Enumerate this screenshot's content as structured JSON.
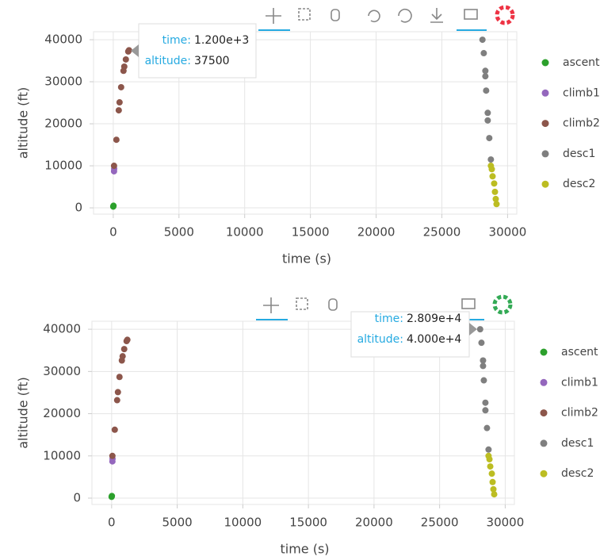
{
  "chart_data": [
    {
      "type": "scatter",
      "x_label": "time (s)",
      "y_label": "altitude (ft)",
      "xlim": [
        -1500,
        30700
      ],
      "ylim": [
        -1500,
        41900
      ],
      "xticks": [
        0,
        5000,
        10000,
        15000,
        20000,
        25000,
        30000
      ],
      "yticks": [
        0,
        10000,
        20000,
        30000,
        40000
      ],
      "grid": true,
      "legend": "right",
      "series": [
        {
          "name": "ascent",
          "color": "#2ca02c",
          "x": [
            0,
            20
          ],
          "values": [
            300,
            500
          ]
        },
        {
          "name": "climb1",
          "color": "#9467bd",
          "x": [
            60,
            70
          ],
          "values": [
            8700,
            9300
          ]
        },
        {
          "name": "climb2",
          "color": "#8c564b",
          "x": [
            60,
            240,
            420,
            480,
            600,
            780,
            840,
            960,
            1140,
            1200
          ],
          "values": [
            10000,
            16200,
            23200,
            25100,
            28700,
            32600,
            33600,
            35300,
            37200,
            37500
          ]
        },
        {
          "name": "desc1",
          "color": "#7f7f7f",
          "x": [
            28090,
            28190,
            28310,
            28310,
            28370,
            28490,
            28490,
            28610,
            28730
          ],
          "values": [
            40000,
            36800,
            32600,
            31300,
            27900,
            22600,
            20800,
            16600,
            11500
          ]
        },
        {
          "name": "desc2",
          "color": "#bcbd22",
          "x": [
            28730,
            28800,
            28860,
            28980,
            29040,
            29100,
            29160
          ],
          "values": [
            10000,
            9200,
            7500,
            5800,
            3800,
            2100,
            900
          ]
        }
      ],
      "tooltip": {
        "x_label": "time:",
        "x_value": "1.200e+3",
        "y_label": "altitude:",
        "y_value": "37500"
      }
    },
    {
      "type": "scatter",
      "x_label": "time (s)",
      "y_label": "altitude (ft)",
      "xlim": [
        -1500,
        30700
      ],
      "ylim": [
        -1500,
        41900
      ],
      "xticks": [
        0,
        5000,
        10000,
        15000,
        20000,
        25000,
        30000
      ],
      "yticks": [
        0,
        10000,
        20000,
        30000,
        40000
      ],
      "grid": true,
      "legend": "right",
      "series": [
        {
          "name": "ascent",
          "color": "#2ca02c",
          "x": [
            0,
            20
          ],
          "values": [
            300,
            500
          ]
        },
        {
          "name": "climb1",
          "color": "#9467bd",
          "x": [
            60,
            70
          ],
          "values": [
            8700,
            9300
          ]
        },
        {
          "name": "climb2",
          "color": "#8c564b",
          "x": [
            60,
            240,
            420,
            480,
            600,
            780,
            840,
            960,
            1140,
            1200
          ],
          "values": [
            10000,
            16200,
            23200,
            25100,
            28700,
            32600,
            33600,
            35300,
            37200,
            37500
          ]
        },
        {
          "name": "desc1",
          "color": "#7f7f7f",
          "x": [
            28090,
            28190,
            28310,
            28310,
            28370,
            28490,
            28490,
            28610,
            28730
          ],
          "values": [
            40000,
            36800,
            32600,
            31300,
            27900,
            22600,
            20800,
            16600,
            11500
          ]
        },
        {
          "name": "desc2",
          "color": "#bcbd22",
          "x": [
            28730,
            28800,
            28860,
            28980,
            29040,
            29100,
            29160
          ],
          "values": [
            10000,
            9200,
            7500,
            5800,
            3800,
            2100,
            900
          ]
        }
      ],
      "tooltip": {
        "x_label": "time:",
        "x_value": "2.809e+4",
        "y_label": "altitude:",
        "y_value": "4.000e+4"
      }
    }
  ]
}
